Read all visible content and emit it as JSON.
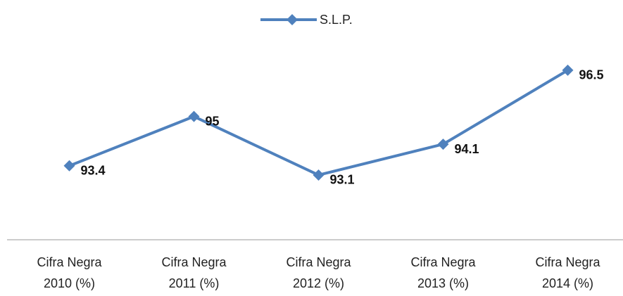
{
  "chart_data": {
    "type": "line",
    "categories": [
      "Cifra Negra 2010 (%)",
      "Cifra Negra 2011 (%)",
      "Cifra Negra 2012 (%)",
      "Cifra Negra 2013 (%)",
      "Cifra Negra 2014 (%)"
    ],
    "series": [
      {
        "name": "S.L.P.",
        "color": "#4f81bd",
        "values": [
          93.4,
          95,
          93.1,
          94.1,
          96.5
        ]
      }
    ],
    "ylim": [
      91,
      97
    ],
    "legend": "top"
  }
}
